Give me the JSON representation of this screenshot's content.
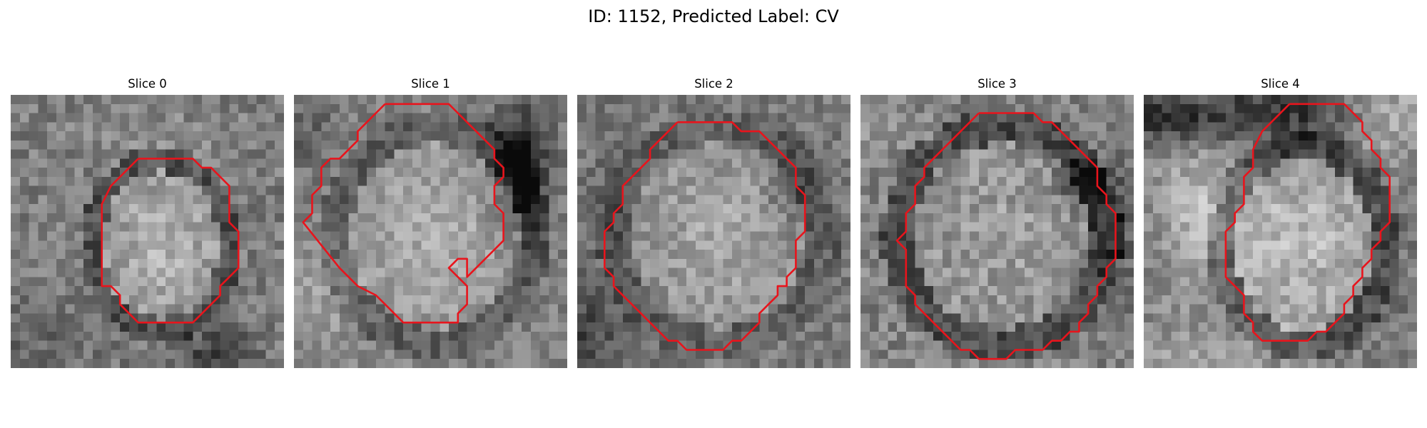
{
  "figure": {
    "title": "ID: 1152, Predicted Label: CV",
    "contour_color": "#e8141c"
  },
  "panels": [
    {
      "title": "Slice 0"
    },
    {
      "title": "Slice 1"
    },
    {
      "title": "Slice 2"
    },
    {
      "title": "Slice 3"
    },
    {
      "title": "Slice 4"
    }
  ]
}
